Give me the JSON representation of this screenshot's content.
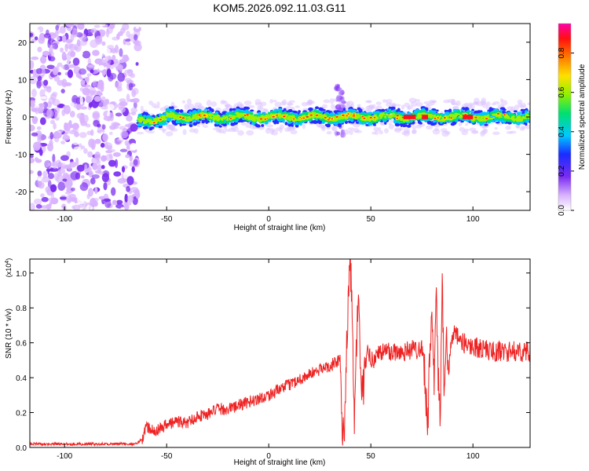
{
  "title": "KOM5.2026.092.11.03.G11",
  "chart_data": [
    {
      "type": "heatmap",
      "xlabel": "Height of straight line (km)",
      "ylabel": "Frequency (Hz)",
      "xlim": [
        -117,
        128
      ],
      "ylim": [
        -25,
        25
      ],
      "xticks": [
        -100,
        -50,
        0,
        50,
        100
      ],
      "yticks": [
        -20,
        -10,
        0,
        10,
        20
      ],
      "colorbar": {
        "label": "Normalized spectral amplitude",
        "range": [
          0,
          0.95
        ],
        "ticks": [
          "0.0",
          "0.2",
          "0.4",
          "0.6",
          "0.8"
        ]
      },
      "noise_region_x": [
        -117,
        -64
      ],
      "signal_start_x": -64,
      "centerline_y": 0,
      "spike_x": 35,
      "spike_y_range": [
        -5,
        9
      ]
    },
    {
      "type": "line",
      "xlabel": "Height of straight line (km)",
      "ylabel": "SNR (10 * v/v)",
      "y_multiplier": "(x10^4)",
      "xlim": [
        -117,
        128
      ],
      "ylim": [
        0,
        1.08
      ],
      "xticks": [
        -100,
        -50,
        0,
        50,
        100
      ],
      "yticks": [
        "0.0",
        "0.2",
        "0.4",
        "0.6",
        "0.8",
        "1.0"
      ],
      "color": "#ee2222",
      "x": [
        -117,
        -100,
        -80,
        -65,
        -62,
        -60,
        -55,
        -50,
        -45,
        -40,
        -35,
        -30,
        -25,
        -20,
        -10,
        0,
        10,
        20,
        30,
        35,
        36,
        37,
        38,
        39,
        40,
        41,
        42,
        43,
        44,
        45,
        46,
        48,
        50,
        55,
        60,
        65,
        70,
        75,
        76,
        77,
        78,
        79,
        80,
        81,
        82,
        83,
        84,
        85,
        86,
        87,
        88,
        90,
        95,
        100,
        110,
        120,
        128
      ],
      "y": [
        0.02,
        0.02,
        0.02,
        0.02,
        0.05,
        0.12,
        0.1,
        0.13,
        0.15,
        0.14,
        0.18,
        0.19,
        0.22,
        0.22,
        0.26,
        0.3,
        0.36,
        0.42,
        0.47,
        0.5,
        0.1,
        0.05,
        0.55,
        0.85,
        1.05,
        0.7,
        0.12,
        0.6,
        0.9,
        0.4,
        0.3,
        0.55,
        0.5,
        0.55,
        0.55,
        0.55,
        0.56,
        0.57,
        0.5,
        0.3,
        0.15,
        0.6,
        0.8,
        0.3,
        0.95,
        0.4,
        0.15,
        0.92,
        0.3,
        0.7,
        0.45,
        0.65,
        0.6,
        0.58,
        0.55,
        0.55,
        0.55
      ]
    }
  ]
}
